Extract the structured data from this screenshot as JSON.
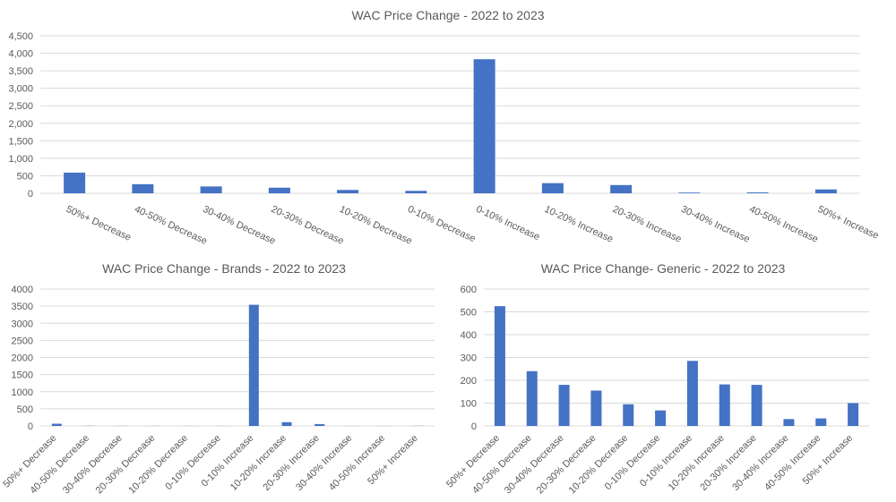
{
  "colors": {
    "bar": "#4472C4",
    "grid": "#D9D9D9",
    "text": "#595959"
  },
  "chart_data": [
    {
      "type": "bar",
      "title": "WAC Price Change - 2022 to 2023",
      "categories": [
        "50%+ Decrease",
        "40-50% Decrease",
        "30-40% Decrease",
        "20-30% Decrease",
        "10-20% Decrease",
        "0-10% Decrease",
        "0-10% Increase",
        "10-20% Increase",
        "20-30% Increase",
        "30-40% Increase",
        "40-50% Increase",
        "50%+ Increase"
      ],
      "values": [
        590,
        260,
        195,
        160,
        95,
        70,
        3830,
        290,
        235,
        20,
        25,
        110
      ],
      "yticks": [
        "0",
        "500",
        "1,000",
        "1,500",
        "2,000",
        "2,500",
        "3,000",
        "3,500",
        "4,000",
        "4,500"
      ],
      "ylim": [
        0,
        4500
      ],
      "grid": true,
      "legend": "none"
    },
    {
      "type": "bar",
      "title": "WAC Price Change - Brands - 2022 to 2023",
      "categories": [
        "50%+ Decrease",
        "40-50% Decrease",
        "30-40% Decrease",
        "20-30% Decrease",
        "10-20% Decrease",
        "0-10% Decrease",
        "0-10% Increase",
        "10-20% Increase",
        "20-30% Increase",
        "30-40% Increase",
        "40-50% Increase",
        "50%+ Increase"
      ],
      "values": [
        65,
        5,
        3,
        3,
        2,
        2,
        3540,
        110,
        55,
        2,
        2,
        5
      ],
      "yticks": [
        "0",
        "500",
        "1000",
        "1500",
        "2000",
        "2500",
        "3000",
        "3500",
        "4000"
      ],
      "ylim": [
        0,
        4000
      ],
      "grid": true,
      "legend": "none"
    },
    {
      "type": "bar",
      "title": "WAC Price Change- Generic - 2022 to 2023",
      "categories": [
        "50%+ Decrease",
        "40-50% Decrease",
        "30-40% Decrease",
        "20-30% Decrease",
        "10-20% Decrease",
        "0-10% Decrease",
        "0-10% Increase",
        "10-20% Increase",
        "20-30% Increase",
        "30-40% Increase",
        "40-50% Increase",
        "50%+ Increase"
      ],
      "values": [
        525,
        240,
        180,
        155,
        95,
        68,
        285,
        182,
        180,
        30,
        33,
        100
      ],
      "yticks": [
        "0",
        "100",
        "200",
        "300",
        "400",
        "500",
        "600"
      ],
      "ylim": [
        0,
        600
      ],
      "grid": true,
      "legend": "none"
    }
  ]
}
